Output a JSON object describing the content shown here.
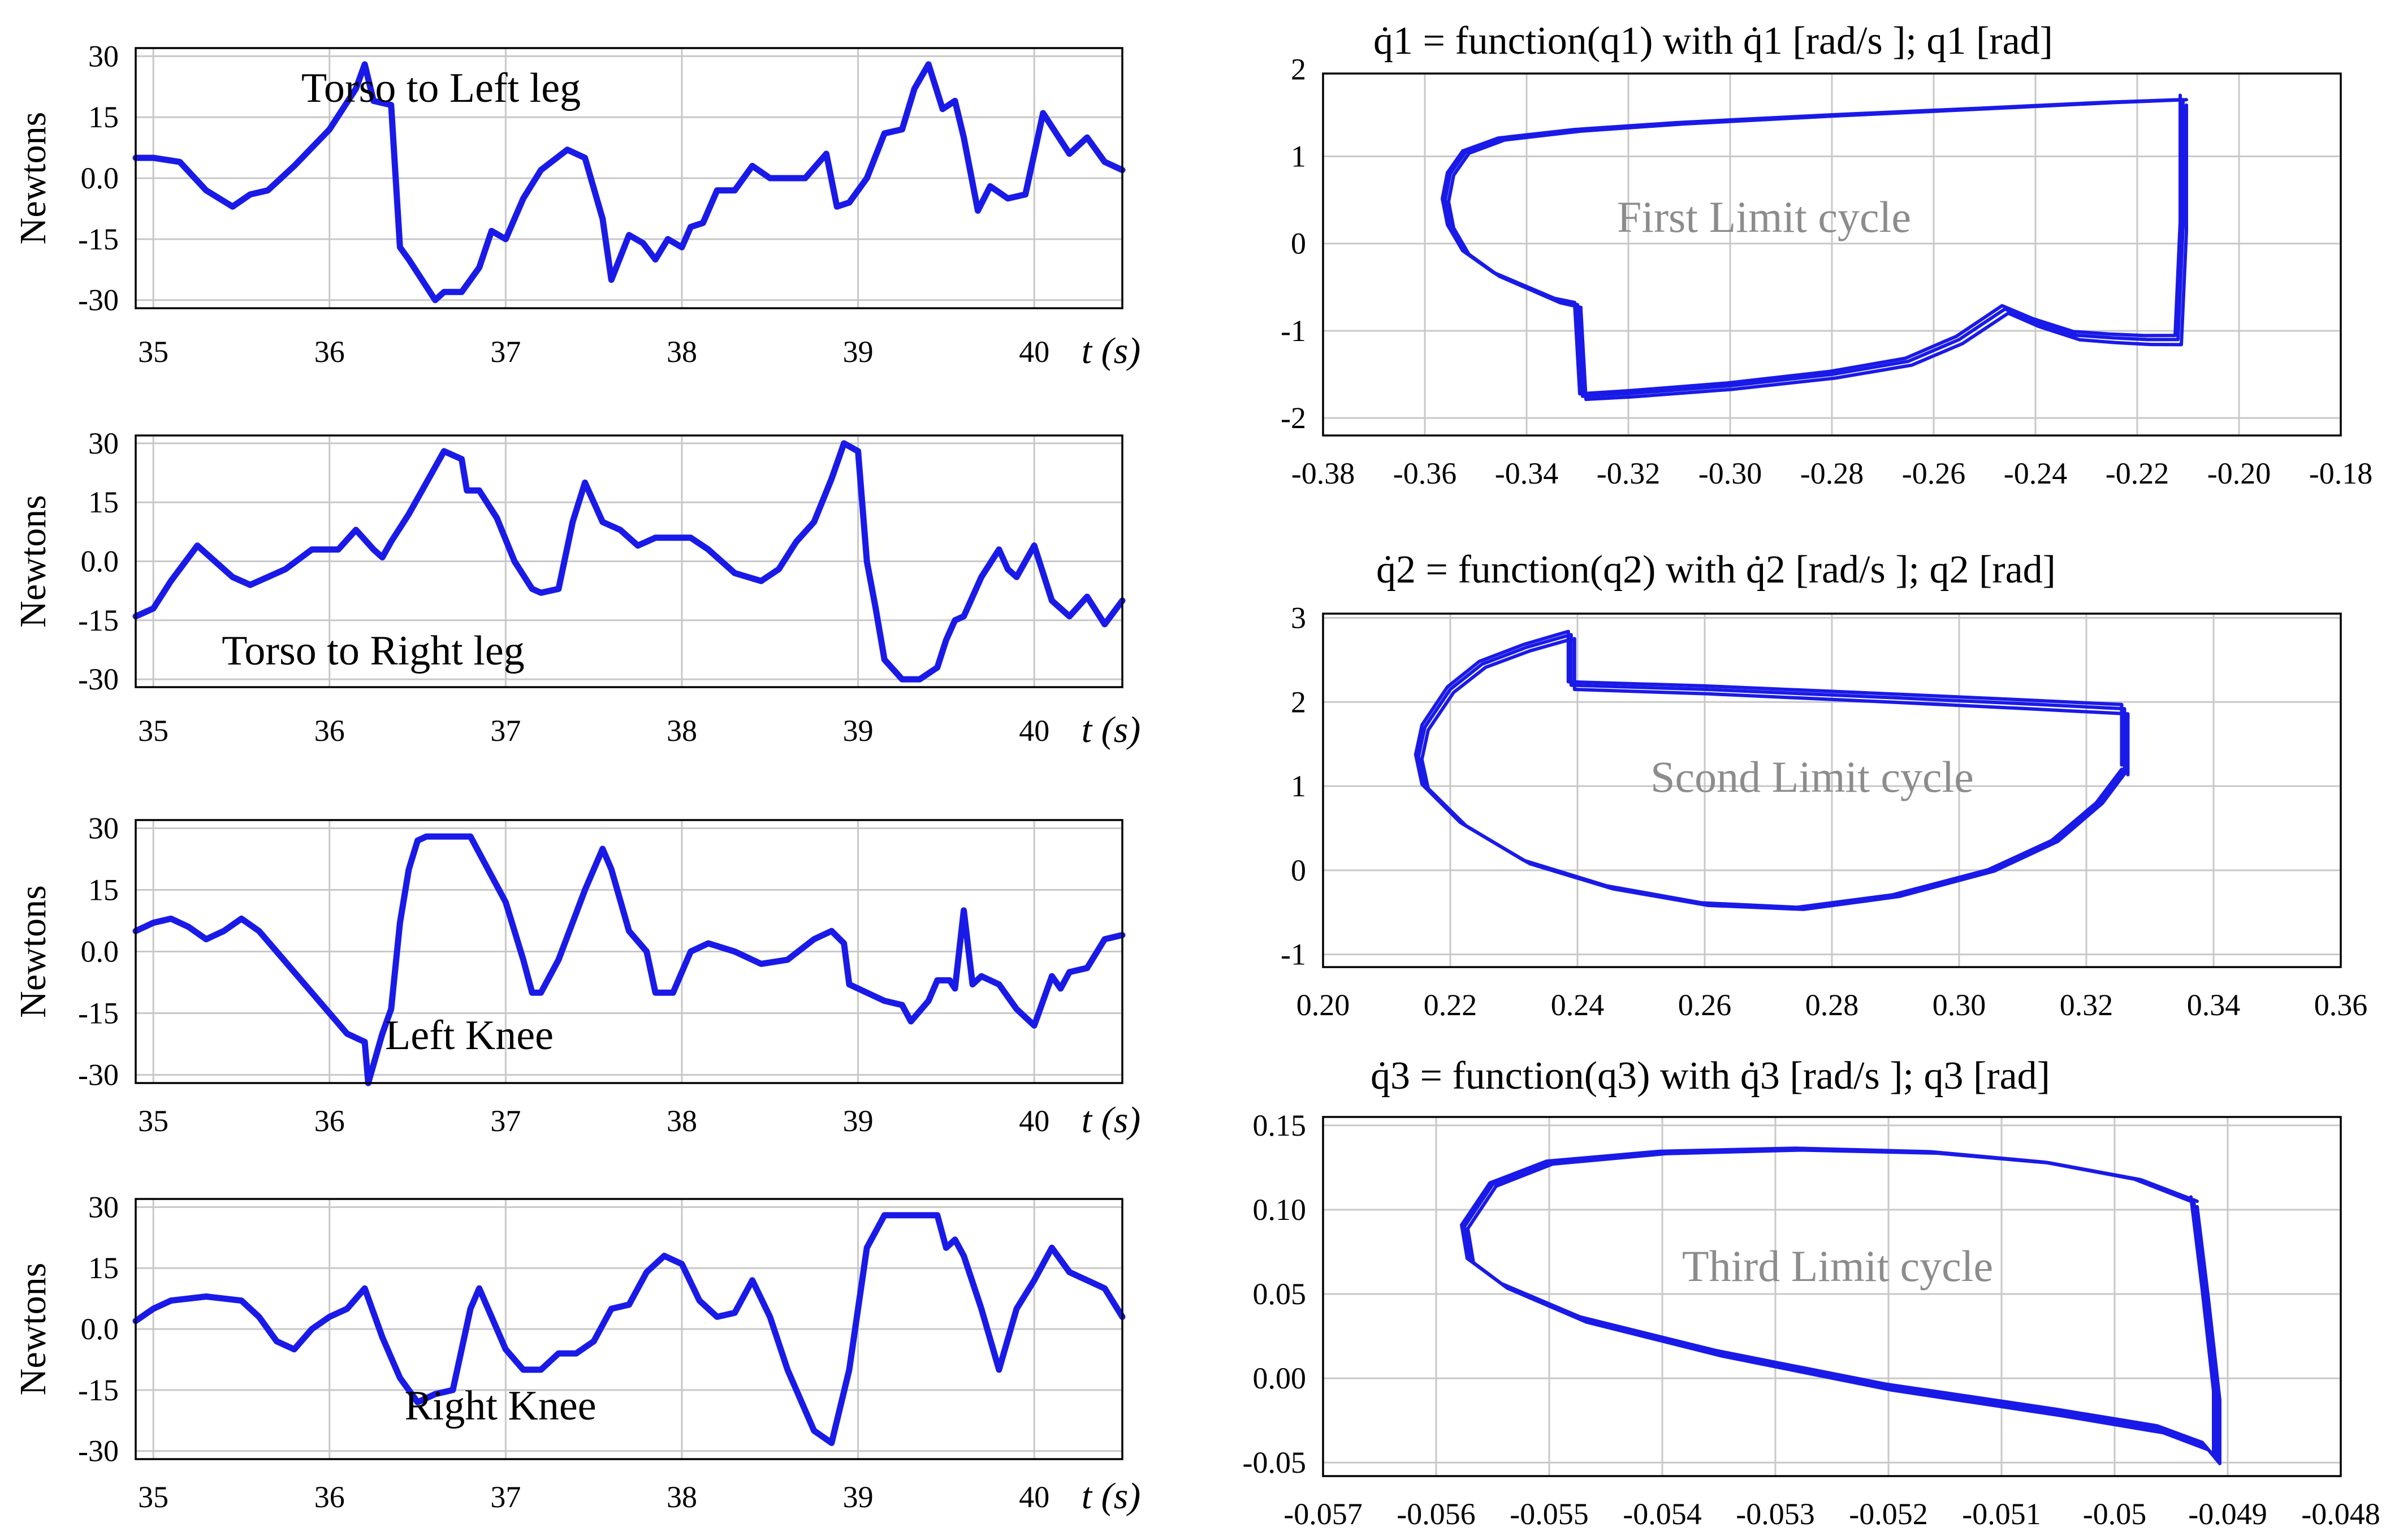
{
  "chart_data": [
    {
      "type": "line",
      "ylabel": "Newtons",
      "annotation": "Torso to Left leg",
      "x_axis_label": "t (s)",
      "x_ticks": [
        "35",
        "36",
        "37",
        "38",
        "39",
        "40"
      ],
      "y_ticks": [
        "30",
        "15",
        "0.0",
        "-15",
        "-30"
      ],
      "xlim": [
        34.9,
        40.5
      ],
      "ylim": [
        -32,
        32
      ],
      "grid": true,
      "color": "#1a1ae8",
      "x": [
        34.9,
        35.0,
        35.15,
        35.3,
        35.45,
        35.55,
        35.65,
        35.8,
        36.0,
        36.15,
        36.2,
        36.25,
        36.35,
        36.4,
        36.45,
        36.6,
        36.65,
        36.75,
        36.85,
        36.92,
        37.0,
        37.1,
        37.2,
        37.35,
        37.45,
        37.55,
        37.6,
        37.7,
        37.78,
        37.85,
        37.92,
        38.0,
        38.05,
        38.12,
        38.2,
        38.3,
        38.4,
        38.5,
        38.6,
        38.7,
        38.82,
        38.88,
        38.95,
        39.05,
        39.15,
        39.25,
        39.32,
        39.4,
        39.48,
        39.55,
        39.6,
        39.68,
        39.75,
        39.85,
        39.95,
        40.05,
        40.2,
        40.3,
        40.4,
        40.5
      ],
      "y": [
        5,
        5,
        4,
        -3,
        -7,
        -4,
        -3,
        3,
        12,
        22,
        28,
        19,
        18,
        -17,
        -20,
        -30,
        -28,
        -28,
        -22,
        -13,
        -15,
        -5,
        2,
        7,
        5,
        -10,
        -25,
        -14,
        -16,
        -20,
        -15,
        -17,
        -12,
        -11,
        -3,
        -3,
        3,
        0,
        0,
        0,
        6,
        -7,
        -6,
        0,
        11,
        12,
        22,
        28,
        17,
        19,
        10,
        -8,
        -2,
        -5,
        -4,
        16,
        6,
        10,
        4,
        2
      ]
    },
    {
      "type": "line",
      "ylabel": "Newtons",
      "annotation": "Torso to Right leg",
      "x_axis_label": "t (s)",
      "x_ticks": [
        "35",
        "36",
        "37",
        "38",
        "39",
        "40"
      ],
      "y_ticks": [
        "30",
        "15",
        "0.0",
        "-15",
        "-30"
      ],
      "xlim": [
        34.9,
        40.5
      ],
      "ylim": [
        -32,
        32
      ],
      "grid": true,
      "color": "#1a1ae8",
      "x": [
        34.9,
        35.0,
        35.1,
        35.25,
        35.35,
        35.45,
        35.55,
        35.65,
        35.75,
        35.9,
        36.05,
        36.15,
        36.25,
        36.3,
        36.35,
        36.45,
        36.55,
        36.65,
        36.75,
        36.78,
        36.85,
        36.95,
        37.05,
        37.15,
        37.2,
        37.3,
        37.38,
        37.45,
        37.55,
        37.65,
        37.75,
        37.85,
        37.95,
        38.05,
        38.15,
        38.3,
        38.45,
        38.55,
        38.65,
        38.75,
        38.85,
        38.92,
        39.0,
        39.05,
        39.1,
        39.15,
        39.25,
        39.35,
        39.45,
        39.5,
        39.55,
        39.6,
        39.7,
        39.8,
        39.85,
        39.9,
        40.0,
        40.1,
        40.2,
        40.3,
        40.4,
        40.5
      ],
      "y": [
        -14,
        -12,
        -5,
        4,
        0,
        -4,
        -6,
        -4,
        -2,
        3,
        3,
        8,
        3,
        1,
        5,
        12,
        20,
        28,
        26,
        18,
        18,
        11,
        0,
        -7,
        -8,
        -7,
        10,
        20,
        10,
        8,
        4,
        6,
        6,
        6,
        3,
        -3,
        -5,
        -2,
        5,
        10,
        21,
        30,
        28,
        0,
        -12,
        -25,
        -30,
        -30,
        -27,
        -20,
        -15,
        -14,
        -4,
        3,
        -2,
        -4,
        4,
        -10,
        -14,
        -9,
        -16,
        -10
      ]
    },
    {
      "type": "line",
      "ylabel": "Newtons",
      "annotation": "Left Knee",
      "x_axis_label": "t (s)",
      "x_ticks": [
        "35",
        "36",
        "37",
        "38",
        "39",
        "40"
      ],
      "y_ticks": [
        "30",
        "15",
        "0.0",
        "-15",
        "-30"
      ],
      "xlim": [
        34.9,
        40.5
      ],
      "ylim": [
        -32,
        32
      ],
      "grid": true,
      "color": "#1a1ae8",
      "x": [
        34.9,
        35.0,
        35.1,
        35.2,
        35.3,
        35.4,
        35.5,
        35.6,
        35.7,
        35.8,
        35.9,
        36.0,
        36.1,
        36.2,
        36.22,
        36.3,
        36.35,
        36.4,
        36.45,
        36.5,
        36.55,
        36.65,
        36.8,
        36.9,
        37.0,
        37.1,
        37.15,
        37.2,
        37.3,
        37.45,
        37.55,
        37.6,
        37.7,
        37.8,
        37.85,
        37.95,
        38.0,
        38.05,
        38.15,
        38.3,
        38.45,
        38.6,
        38.75,
        38.85,
        38.92,
        38.95,
        39.05,
        39.15,
        39.25,
        39.3,
        39.4,
        39.45,
        39.52,
        39.55,
        39.6,
        39.65,
        39.7,
        39.8,
        39.9,
        40.0,
        40.1,
        40.15,
        40.2,
        40.3,
        40.4,
        40.5
      ],
      "y": [
        5,
        7,
        8,
        6,
        3,
        5,
        8,
        5,
        0,
        -5,
        -10,
        -15,
        -20,
        -22,
        -32,
        -20,
        -14,
        7,
        20,
        27,
        28,
        28,
        28,
        20,
        12,
        -2,
        -10,
        -10,
        -2,
        15,
        25,
        20,
        5,
        0,
        -10,
        -10,
        -5,
        0,
        2,
        0,
        -3,
        -2,
        3,
        5,
        2,
        -8,
        -10,
        -12,
        -13,
        -17,
        -12,
        -7,
        -7,
        -9,
        10,
        -8,
        -6,
        -8,
        -14,
        -18,
        -6,
        -9,
        -5,
        -4,
        3,
        4
      ]
    },
    {
      "type": "line",
      "ylabel": "Newtons",
      "annotation": "Right Knee",
      "x_axis_label": "t (s)",
      "x_ticks": [
        "35",
        "36",
        "37",
        "38",
        "39",
        "40"
      ],
      "y_ticks": [
        "30",
        "15",
        "0.0",
        "-15",
        "-30"
      ],
      "xlim": [
        34.9,
        40.5
      ],
      "ylim": [
        -32,
        32
      ],
      "grid": true,
      "color": "#1a1ae8",
      "x": [
        34.9,
        35.0,
        35.1,
        35.3,
        35.5,
        35.6,
        35.7,
        35.8,
        35.9,
        36.0,
        36.1,
        36.2,
        36.3,
        36.4,
        36.5,
        36.6,
        36.7,
        36.8,
        36.85,
        36.9,
        37.0,
        37.1,
        37.2,
        37.3,
        37.4,
        37.5,
        37.6,
        37.7,
        37.8,
        37.9,
        38.0,
        38.1,
        38.2,
        38.3,
        38.4,
        38.5,
        38.6,
        38.75,
        38.85,
        38.95,
        39.05,
        39.15,
        39.25,
        39.35,
        39.45,
        39.5,
        39.55,
        39.6,
        39.7,
        39.8,
        39.9,
        40.0,
        40.1,
        40.2,
        40.3,
        40.4,
        40.5
      ],
      "y": [
        2,
        5,
        7,
        8,
        7,
        3,
        -3,
        -5,
        0,
        3,
        5,
        10,
        -2,
        -12,
        -18,
        -16,
        -15,
        5,
        10,
        5,
        -5,
        -10,
        -10,
        -6,
        -6,
        -3,
        5,
        6,
        14,
        18,
        16,
        7,
        3,
        4,
        12,
        3,
        -10,
        -25,
        -28,
        -10,
        20,
        28,
        28,
        28,
        28,
        20,
        22,
        18,
        5,
        -10,
        5,
        12,
        20,
        14,
        12,
        10,
        3
      ]
    },
    {
      "type": "line",
      "title": "q̇1 = function(q1) with q̇1 [rad/s ]; q1 [rad]",
      "annotation": "First Limit cycle",
      "x_ticks": [
        "-0.38",
        "-0.36",
        "-0.34",
        "-0.32",
        "-0.30",
        "-0.28",
        "-0.26",
        "-0.24",
        "-0.22",
        "-0.20",
        "-0.18"
      ],
      "y_ticks": [
        "2",
        "1",
        "0",
        "-1",
        "-2"
      ],
      "xlim": [
        -0.38,
        -0.18
      ],
      "ylim": [
        -2.2,
        1.95
      ],
      "grid": true,
      "color": "#1a1ae8",
      "x": [
        -0.211,
        -0.225,
        -0.25,
        -0.28,
        -0.31,
        -0.33,
        -0.345,
        -0.352,
        -0.355,
        -0.356,
        -0.355,
        -0.352,
        -0.346,
        -0.34,
        -0.334,
        -0.33,
        -0.33,
        -0.329,
        -0.32,
        -0.3,
        -0.28,
        -0.265,
        -0.255,
        -0.246,
        -0.24,
        -0.232,
        -0.225,
        -0.218,
        -0.212,
        -0.211,
        -0.211
      ],
      "y": [
        1.65,
        1.62,
        1.55,
        1.47,
        1.38,
        1.3,
        1.2,
        1.05,
        0.8,
        0.5,
        0.2,
        -0.1,
        -0.35,
        -0.5,
        -0.65,
        -0.7,
        -0.72,
        -1.75,
        -1.72,
        -1.63,
        -1.5,
        -1.35,
        -1.1,
        -0.75,
        -0.9,
        -1.05,
        -1.08,
        -1.1,
        -1.1,
        0.2,
        1.65
      ]
    },
    {
      "type": "line",
      "title": "q̇2 = function(q2) with q̇2 [rad/s ]; q2 [rad]",
      "annotation": "Scond Limit cycle",
      "x_ticks": [
        "0.20",
        "0.22",
        "0.24",
        "0.26",
        "0.28",
        "0.30",
        "0.32",
        "0.34",
        "0.36"
      ],
      "y_ticks": [
        "3",
        "2",
        "1",
        "0",
        "-1"
      ],
      "xlim": [
        0.2,
        0.36
      ],
      "ylim": [
        -1.15,
        3.05
      ],
      "grid": true,
      "color": "#1a1ae8",
      "x": [
        0.326,
        0.322,
        0.315,
        0.305,
        0.29,
        0.275,
        0.26,
        0.245,
        0.232,
        0.222,
        0.216,
        0.215,
        0.216,
        0.22,
        0.225,
        0.232,
        0.238,
        0.239,
        0.239,
        0.26,
        0.29,
        0.31,
        0.326,
        0.326
      ],
      "y": [
        1.2,
        0.8,
        0.35,
        0.0,
        -0.3,
        -0.45,
        -0.4,
        -0.2,
        0.1,
        0.55,
        1.0,
        1.35,
        1.7,
        2.15,
        2.45,
        2.65,
        2.78,
        2.8,
        2.2,
        2.15,
        2.05,
        1.98,
        1.92,
        1.2
      ]
    },
    {
      "type": "line",
      "title": "q̇3 = function(q3) with q̇3 [rad/s ]; q3 [rad]",
      "annotation": "Third Limit cycle",
      "x_ticks": [
        "-0.057",
        "-0.056",
        "-0.055",
        "-0.054",
        "-0.053",
        "-0.052",
        "-0.051",
        "-0.05",
        "-0.049",
        "-0.048"
      ],
      "y_ticks": [
        "0.15",
        "0.10",
        "0.05",
        "0.00",
        "-0.05"
      ],
      "xlim": [
        -0.057,
        -0.048
      ],
      "ylim": [
        -0.058,
        0.155
      ],
      "grid": true,
      "color": "#1a1ae8",
      "x": [
        -0.0493,
        -0.0498,
        -0.0506,
        -0.0516,
        -0.0528,
        -0.054,
        -0.055,
        -0.0555,
        -0.05575,
        -0.0557,
        -0.0554,
        -0.0547,
        -0.0535,
        -0.052,
        -0.0505,
        -0.0496,
        -0.0492,
        -0.0491,
        -0.0491,
        -0.0491,
        -0.0492,
        -0.0493
      ],
      "y": [
        0.105,
        0.118,
        0.128,
        0.134,
        0.136,
        0.134,
        0.128,
        0.115,
        0.09,
        0.07,
        0.055,
        0.035,
        0.015,
        -0.005,
        -0.02,
        -0.03,
        -0.04,
        -0.048,
        -0.045,
        -0.01,
        0.05,
        0.105
      ]
    }
  ]
}
